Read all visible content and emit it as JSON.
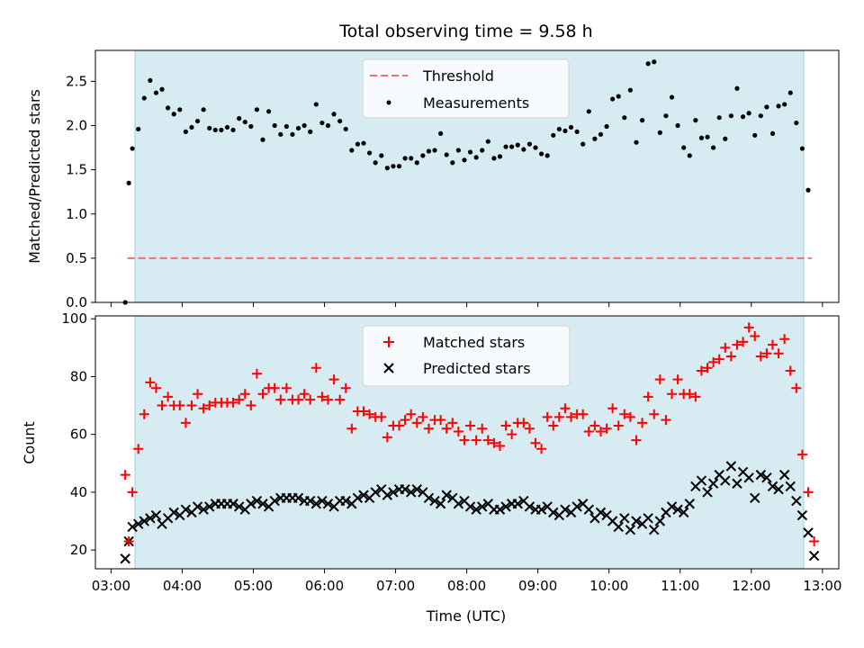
{
  "chart_data": [
    {
      "type": "scatter",
      "title": "Total observing time = 9.58 h",
      "xlabel": "",
      "ylabel": "Matched/Predicted stars",
      "ylim": [
        0,
        2.85
      ],
      "xlim_hours": [
        2.78,
        13.23
      ],
      "yticks": [
        "0.0",
        "0.5",
        "1.0",
        "1.5",
        "2.0",
        "2.5"
      ],
      "shaded_span_hours": [
        3.27,
        12.85
      ],
      "legend_position": "top-center",
      "series": [
        {
          "name": "Threshold",
          "kind": "line",
          "color": "#f07070",
          "y": 0.5,
          "x_range": [
            3.23,
            12.85
          ]
        },
        {
          "name": "Measurements",
          "kind": "scatter",
          "color": "#000000",
          "x": [
            "03:12",
            "03:15",
            "03:18",
            "03:23",
            "03:28",
            "03:33",
            "03:38",
            "03:43",
            "03:48",
            "03:53",
            "03:58",
            "04:03",
            "04:08",
            "04:13",
            "04:18",
            "04:23",
            "04:28",
            "04:33",
            "04:38",
            "04:43",
            "04:48",
            "04:53",
            "04:58",
            "05:03",
            "05:08",
            "05:13",
            "05:18",
            "05:23",
            "05:28",
            "05:33",
            "05:38",
            "05:43",
            "05:48",
            "05:53",
            "05:58",
            "06:03",
            "06:08",
            "06:13",
            "06:18",
            "06:23",
            "06:28",
            "06:33",
            "06:38",
            "06:43",
            "06:48",
            "06:53",
            "06:58",
            "07:03",
            "07:08",
            "07:13",
            "07:18",
            "07:23",
            "07:28",
            "07:33",
            "07:38",
            "07:43",
            "07:48",
            "07:53",
            "07:58",
            "08:03",
            "08:08",
            "08:13",
            "08:18",
            "08:23",
            "08:28",
            "08:33",
            "08:38",
            "08:43",
            "08:48",
            "08:53",
            "08:58",
            "09:03",
            "09:08",
            "09:13",
            "09:18",
            "09:23",
            "09:28",
            "09:33",
            "09:38",
            "09:43",
            "09:48",
            "09:53",
            "09:58",
            "10:03",
            "10:08",
            "10:13",
            "10:18",
            "10:23",
            "10:28",
            "10:33",
            "10:38",
            "10:43",
            "10:48",
            "10:53",
            "10:58",
            "11:03",
            "11:08",
            "11:13",
            "11:18",
            "11:23",
            "11:28",
            "11:33",
            "11:38",
            "11:43",
            "11:48",
            "11:53",
            "11:58",
            "12:03",
            "12:08",
            "12:13",
            "12:18",
            "12:23",
            "12:28",
            "12:33",
            "12:38",
            "12:43",
            "12:48"
          ],
          "y": [
            0.0,
            1.35,
            1.74,
            1.96,
            2.31,
            2.51,
            2.37,
            2.41,
            2.2,
            2.13,
            2.18,
            1.93,
            1.98,
            2.05,
            2.18,
            1.97,
            1.95,
            1.95,
            1.98,
            1.95,
            2.08,
            2.04,
            1.99,
            2.18,
            1.84,
            2.16,
            2.0,
            1.9,
            1.99,
            1.9,
            1.97,
            2.0,
            1.93,
            2.24,
            2.03,
            2.0,
            2.13,
            2.05,
            1.96,
            1.72,
            1.79,
            1.8,
            1.69,
            1.58,
            1.66,
            1.52,
            1.54,
            1.54,
            1.63,
            1.63,
            1.58,
            1.66,
            1.71,
            1.72,
            1.91,
            1.67,
            1.58,
            1.72,
            1.61,
            1.7,
            1.64,
            1.72,
            1.82,
            1.63,
            1.65,
            1.76,
            1.76,
            1.78,
            1.73,
            1.79,
            1.75,
            1.68,
            1.66,
            1.89,
            1.96,
            1.94,
            1.98,
            1.93,
            1.79,
            2.16,
            1.85,
            1.9,
            1.99,
            2.3,
            2.33,
            2.09,
            2.4,
            1.81,
            2.06,
            2.7,
            2.72,
            1.92,
            2.11,
            2.32,
            2.0,
            1.75,
            1.66,
            2.06,
            1.86,
            1.87,
            1.75,
            2.09,
            1.85,
            2.11,
            2.42,
            2.1,
            2.14,
            1.89,
            2.11,
            2.21,
            1.91,
            2.22,
            2.24,
            2.37,
            2.03,
            1.74,
            1.27
          ]
        }
      ]
    },
    {
      "type": "scatter",
      "title": "",
      "xlabel": "Time (UTC)",
      "ylabel": "Count",
      "ylim": [
        13.5,
        101
      ],
      "xlim_hours": [
        2.78,
        13.23
      ],
      "xticks": [
        "03:00",
        "04:00",
        "05:00",
        "06:00",
        "07:00",
        "08:00",
        "09:00",
        "10:00",
        "11:00",
        "12:00",
        "13:00"
      ],
      "yticks": [
        "20",
        "40",
        "60",
        "80",
        "100"
      ],
      "shaded_span_hours": [
        3.27,
        12.85
      ],
      "legend_position": "top-center",
      "series": [
        {
          "name": "Matched stars",
          "kind": "plus",
          "color": "#ff0000",
          "x": [
            "03:12",
            "03:15",
            "03:18",
            "03:23",
            "03:28",
            "03:33",
            "03:38",
            "03:43",
            "03:48",
            "03:53",
            "03:58",
            "04:03",
            "04:08",
            "04:13",
            "04:18",
            "04:23",
            "04:28",
            "04:33",
            "04:38",
            "04:43",
            "04:48",
            "04:53",
            "04:58",
            "05:03",
            "05:08",
            "05:13",
            "05:18",
            "05:23",
            "05:28",
            "05:33",
            "05:38",
            "05:43",
            "05:48",
            "05:53",
            "05:58",
            "06:03",
            "06:08",
            "06:13",
            "06:18",
            "06:23",
            "06:28",
            "06:33",
            "06:38",
            "06:43",
            "06:48",
            "06:53",
            "06:58",
            "07:03",
            "07:08",
            "07:13",
            "07:18",
            "07:23",
            "07:28",
            "07:33",
            "07:38",
            "07:43",
            "07:48",
            "07:53",
            "07:58",
            "08:03",
            "08:08",
            "08:13",
            "08:18",
            "08:23",
            "08:28",
            "08:33",
            "08:38",
            "08:43",
            "08:48",
            "08:53",
            "08:58",
            "09:03",
            "09:08",
            "09:13",
            "09:18",
            "09:23",
            "09:28",
            "09:33",
            "09:38",
            "09:43",
            "09:48",
            "09:53",
            "09:58",
            "10:03",
            "10:08",
            "10:13",
            "10:18",
            "10:23",
            "10:28",
            "10:33",
            "10:38",
            "10:43",
            "10:48",
            "10:53",
            "10:58",
            "11:03",
            "11:08",
            "11:13",
            "11:18",
            "11:23",
            "11:28",
            "11:33",
            "11:38",
            "11:43",
            "11:48",
            "11:53",
            "11:58",
            "12:03",
            "12:08",
            "12:13",
            "12:18",
            "12:23",
            "12:28",
            "12:33",
            "12:38",
            "12:43",
            "12:48",
            "12:53"
          ],
          "y": [
            46,
            23,
            40,
            55,
            67,
            78,
            76,
            70,
            73,
            70,
            70,
            64,
            70,
            74,
            69,
            70,
            71,
            71,
            71,
            71,
            72,
            74,
            70,
            81,
            74,
            76,
            76,
            72,
            76,
            72,
            72,
            74,
            72,
            83,
            73,
            72,
            79,
            72,
            76,
            62,
            68,
            68,
            67,
            66,
            66,
            59,
            63,
            63,
            65,
            67,
            64,
            66,
            62,
            65,
            65,
            62,
            64,
            61,
            58,
            63,
            58,
            62,
            58,
            57,
            56,
            63,
            60,
            64,
            64,
            62,
            57,
            55,
            66,
            63,
            66,
            69,
            66,
            67,
            67,
            61,
            63,
            61,
            62,
            69,
            63,
            67,
            66,
            58,
            64,
            73,
            67,
            79,
            65,
            74,
            79,
            74,
            74,
            73,
            82,
            83,
            85,
            86,
            90,
            87,
            91,
            92,
            97,
            94,
            87,
            88,
            91,
            88,
            93,
            82,
            76,
            53,
            40,
            23
          ]
        },
        {
          "name": "Predicted stars",
          "kind": "x",
          "color": "#000000",
          "x": [
            "03:12",
            "03:15",
            "03:18",
            "03:23",
            "03:28",
            "03:33",
            "03:38",
            "03:43",
            "03:48",
            "03:53",
            "03:58",
            "04:03",
            "04:08",
            "04:13",
            "04:18",
            "04:23",
            "04:28",
            "04:33",
            "04:38",
            "04:43",
            "04:48",
            "04:53",
            "04:58",
            "05:03",
            "05:08",
            "05:13",
            "05:18",
            "05:23",
            "05:28",
            "05:33",
            "05:38",
            "05:43",
            "05:48",
            "05:53",
            "05:58",
            "06:03",
            "06:08",
            "06:13",
            "06:18",
            "06:23",
            "06:28",
            "06:33",
            "06:38",
            "06:43",
            "06:48",
            "06:53",
            "06:58",
            "07:03",
            "07:08",
            "07:13",
            "07:18",
            "07:23",
            "07:28",
            "07:33",
            "07:38",
            "07:43",
            "07:48",
            "07:53",
            "07:58",
            "08:03",
            "08:08",
            "08:13",
            "08:18",
            "08:23",
            "08:28",
            "08:33",
            "08:38",
            "08:43",
            "08:48",
            "08:53",
            "08:58",
            "09:03",
            "09:08",
            "09:13",
            "09:18",
            "09:23",
            "09:28",
            "09:33",
            "09:38",
            "09:43",
            "09:48",
            "09:53",
            "09:58",
            "10:03",
            "10:08",
            "10:13",
            "10:18",
            "10:23",
            "10:28",
            "10:33",
            "10:38",
            "10:43",
            "10:48",
            "10:53",
            "10:58",
            "11:03",
            "11:08",
            "11:13",
            "11:18",
            "11:23",
            "11:28",
            "11:33",
            "11:38",
            "11:43",
            "11:48",
            "11:53",
            "11:58",
            "12:03",
            "12:08",
            "12:13",
            "12:18",
            "12:23",
            "12:28",
            "12:33",
            "12:38",
            "12:43",
            "12:48",
            "12:53"
          ],
          "y": [
            17,
            23,
            28,
            29,
            30,
            31,
            32,
            29,
            31,
            33,
            32,
            34,
            33,
            35,
            34,
            35,
            36,
            36,
            36,
            36,
            35,
            34,
            36,
            37,
            36,
            35,
            37,
            38,
            38,
            38,
            38,
            37,
            37,
            36,
            37,
            36,
            35,
            37,
            37,
            36,
            38,
            39,
            38,
            40,
            41,
            39,
            40,
            41,
            41,
            40,
            41,
            40,
            38,
            37,
            36,
            39,
            38,
            36,
            37,
            35,
            34,
            35,
            36,
            34,
            34,
            35,
            36,
            36,
            37,
            35,
            34,
            34,
            35,
            33,
            32,
            34,
            33,
            35,
            36,
            34,
            31,
            33,
            32,
            30,
            28,
            31,
            27,
            30,
            29,
            31,
            27,
            30,
            33,
            35,
            34,
            33,
            36,
            42,
            44,
            40,
            43,
            46,
            44,
            49,
            43,
            47,
            45,
            38,
            46,
            45,
            42,
            41,
            46,
            42,
            37,
            32,
            26,
            18
          ]
        }
      ]
    }
  ]
}
